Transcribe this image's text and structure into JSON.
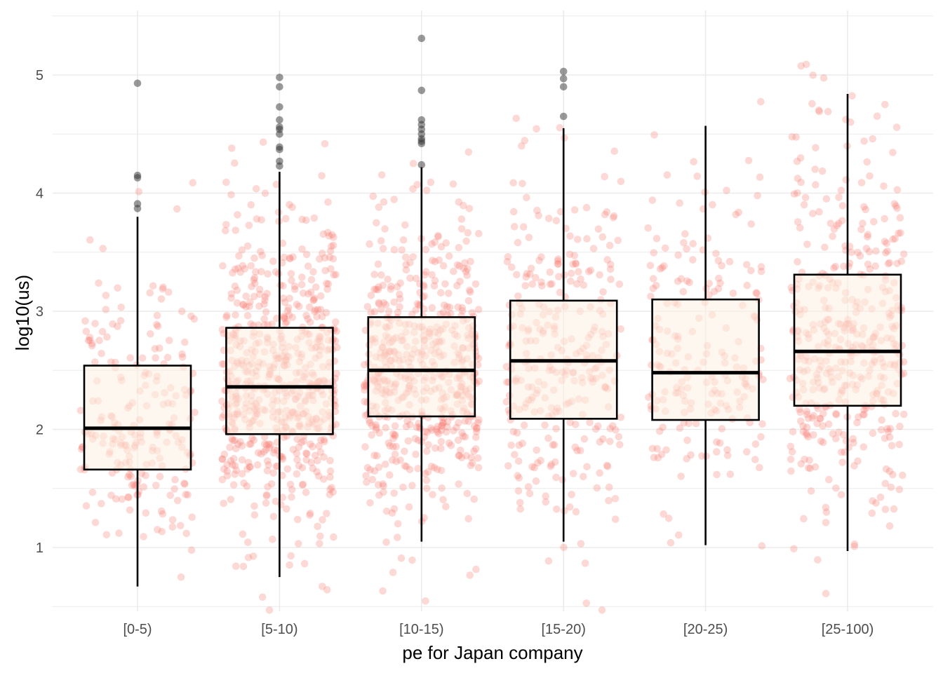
{
  "chart_data": {
    "type": "boxplot",
    "title": "",
    "xlabel": "pe for Japan company",
    "ylabel": "log10(us)",
    "ylim": [
      0.45,
      5.55
    ],
    "yticks": [
      1,
      2,
      3,
      4,
      5
    ],
    "grid": true,
    "categories": [
      "[0-5)",
      "[5-10)",
      "[10-15)",
      "[15-20)",
      "[20-25)",
      "[25-100)"
    ],
    "boxes": [
      {
        "q1": 1.66,
        "median": 2.01,
        "q3": 2.54,
        "whisker_low": 0.67,
        "whisker_high": 3.8,
        "n_jitter": 210,
        "outliers": [
          4.93,
          4.15,
          4.13,
          3.91,
          3.87
        ]
      },
      {
        "q1": 1.96,
        "median": 2.36,
        "q3": 2.86,
        "whisker_low": 0.75,
        "whisker_high": 4.18,
        "n_jitter": 620,
        "outliers": [
          4.98,
          4.9,
          4.73,
          4.62,
          4.56,
          4.54,
          4.5,
          4.39,
          4.37,
          4.27,
          4.23
        ]
      },
      {
        "q1": 2.11,
        "median": 2.5,
        "q3": 2.95,
        "whisker_low": 1.05,
        "whisker_high": 4.22,
        "n_jitter": 560,
        "outliers": [
          5.31,
          4.87,
          4.62,
          4.58,
          4.54,
          4.5,
          4.46,
          4.44,
          4.42,
          4.24
        ]
      },
      {
        "q1": 2.09,
        "median": 2.58,
        "q3": 3.09,
        "whisker_low": 1.05,
        "whisker_high": 4.55,
        "n_jitter": 300,
        "outliers": [
          5.03,
          4.97,
          4.9,
          4.65
        ]
      },
      {
        "q1": 2.08,
        "median": 2.48,
        "q3": 3.1,
        "whisker_low": 1.02,
        "whisker_high": 4.57,
        "n_jitter": 200,
        "outliers": []
      },
      {
        "q1": 2.2,
        "median": 2.66,
        "q3": 3.31,
        "whisker_low": 0.97,
        "whisker_high": 4.84,
        "n_jitter": 420,
        "outliers": []
      }
    ],
    "colors": {
      "jitter": "#f8766d",
      "box_fill": "#fdf0e1",
      "box_stroke": "#000000",
      "outlier": "#333333",
      "grid": "#ebebeb"
    }
  }
}
